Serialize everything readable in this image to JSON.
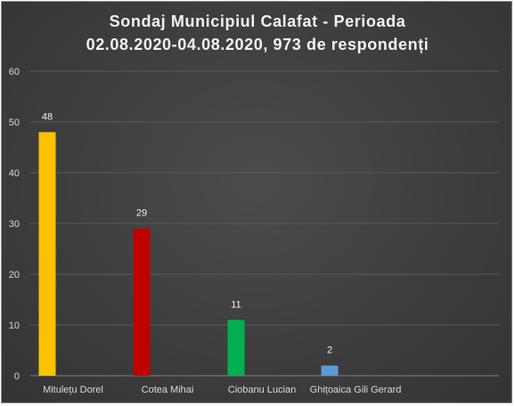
{
  "chart_data": {
    "type": "bar",
    "title_lines": [
      "Sondaj  Municipiul Calafat - Perioada",
      "02.08.2020-04.08.2020, 973 de respondenți"
    ],
    "categories": [
      "Mitulețu Dorel",
      "Cotea Mihai",
      "Ciobanu Lucian",
      "Ghițoaica Gili Gerard"
    ],
    "values": [
      48,
      29,
      11,
      2
    ],
    "colors": [
      "#ffc000",
      "#c00000",
      "#00b050",
      "#5b9bd5"
    ],
    "data_labels": [
      "48",
      "29",
      "11",
      "2"
    ],
    "yticks": [
      "0",
      "10",
      "20",
      "30",
      "40",
      "50",
      "60"
    ],
    "ylim": [
      0,
      60
    ],
    "grid": true,
    "legend": "none",
    "xlabel": "",
    "ylabel": ""
  }
}
